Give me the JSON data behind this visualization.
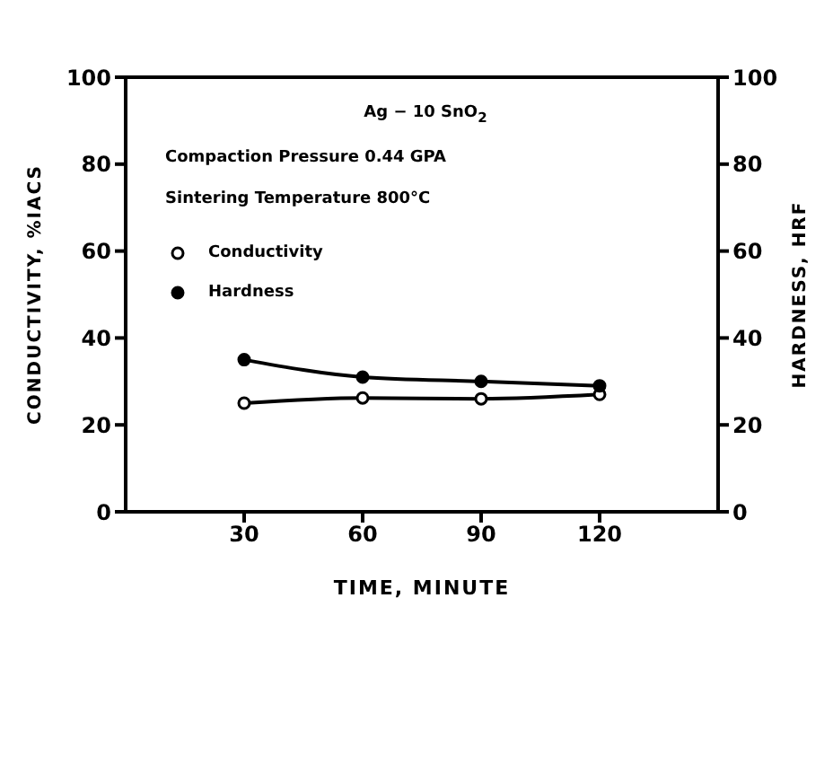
{
  "chart_data": {
    "type": "line",
    "xlabel": "TIME, MINUTE",
    "ylabel": "CONDUCTIVITY, %IACS",
    "y2label": "HARDNESS, HRF",
    "x": [
      30,
      60,
      90,
      120
    ],
    "series": [
      {
        "name": "Conductivity",
        "color": "#000000",
        "values": [
          25,
          26.2,
          26,
          27
        ]
      },
      {
        "name": "Hardness",
        "color": "#000000",
        "values": [
          35,
          31,
          30,
          29
        ],
        "axis": "y2"
      }
    ],
    "xlim": [
      0,
      150
    ],
    "xticks": [
      30,
      60,
      90,
      120
    ],
    "ylim": [
      0,
      100
    ],
    "yticks": [
      0,
      20,
      40,
      60,
      80,
      100
    ],
    "y2lim": [
      0,
      100
    ],
    "y2ticks": [
      0,
      20,
      40,
      60,
      80,
      100
    ],
    "annotations": [
      "Ag − 10 SnO$_{2}$",
      "Compaction Pressure 0.44 GPA",
      "Sintering Temperature 800°C"
    ],
    "legend": "left",
    "marker": "circle",
    "grid": false
  }
}
